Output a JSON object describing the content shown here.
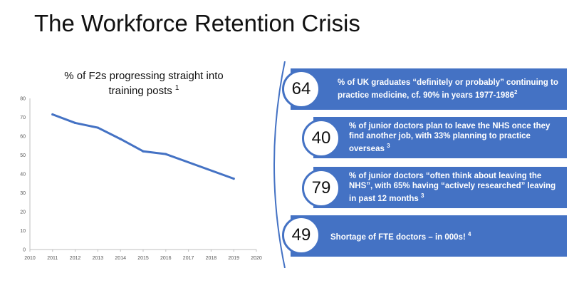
{
  "slide": {
    "title": "The Workforce Retention Crisis"
  },
  "chart": {
    "title_line1": "% of F2s progressing straight into",
    "title_line2": "training posts",
    "title_ref": "1"
  },
  "chart_data": {
    "type": "line",
    "title": "% of F2s progressing straight into training posts",
    "xlabel": "",
    "ylabel": "",
    "x": [
      2011,
      2012,
      2013,
      2014,
      2015,
      2016,
      2019
    ],
    "series": [
      {
        "values": [
          71.5,
          67,
          64.5,
          58.5,
          52,
          50.5,
          37.5
        ]
      }
    ],
    "xlim": [
      2010,
      2020
    ],
    "ylim": [
      0,
      80
    ],
    "xticks": [
      "2010",
      "2011",
      "2012",
      "2013",
      "2014",
      "2015",
      "2016",
      "2017",
      "2018",
      "2019",
      "2020"
    ],
    "yticks": [
      "0",
      "10",
      "20",
      "30",
      "40",
      "50",
      "60",
      "70",
      "80"
    ],
    "grid": false,
    "color": "#4472c4"
  },
  "stats": [
    {
      "number": "64",
      "text": "% of UK graduates “definitely or probably” continuing to practice medicine, cf. 90% in years 1977-1986",
      "ref": "2"
    },
    {
      "number": "40",
      "text": "% of junior doctors plan to leave the NHS once they find another job, with 33% planning to practice overseas",
      "ref": "3"
    },
    {
      "number": "79",
      "text": "% of junior doctors “often think about leaving the NHS”, with 65% having “actively researched” leaving in past 12 months",
      "ref": "3"
    },
    {
      "number": "49",
      "text": "Shortage of FTE doctors – in 000s!",
      "ref": "4"
    }
  ],
  "colors": {
    "accent": "#4472c4"
  }
}
